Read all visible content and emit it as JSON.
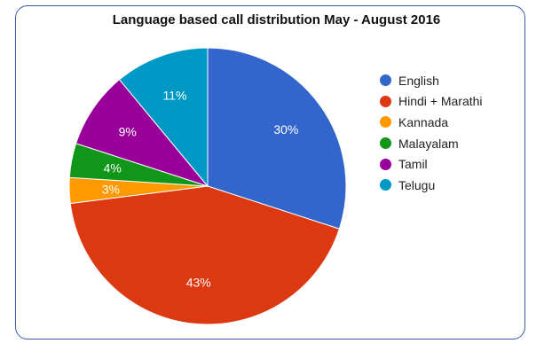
{
  "chart_data": {
    "type": "pie",
    "title": "Language based call distribution May - August 2016",
    "categories": [
      "English",
      "Hindi + Marathi",
      "Kannada",
      "Malayalam",
      "Tamil",
      "Telugu"
    ],
    "values": [
      30,
      43,
      3,
      4,
      9,
      11
    ],
    "data_labels": [
      "30%",
      "43%",
      "3%",
      "4%",
      "9%",
      "11%"
    ],
    "colors": [
      "#3366cc",
      "#dc3912",
      "#ff9900",
      "#109618",
      "#990099",
      "#0099c6"
    ],
    "legend_position": "right",
    "start_angle_deg": 0,
    "direction": "clockwise"
  }
}
